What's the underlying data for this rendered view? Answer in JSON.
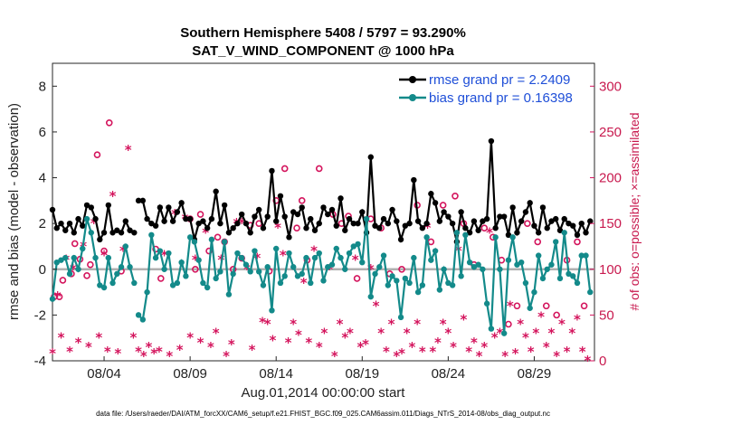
{
  "chart_data": {
    "type": "line",
    "title_line1": "Southern Hemisphere 5408 / 5797 = 93.290%",
    "title_line2": "SAT_V_WIND_COMPONENT @ 1000 hPa",
    "ylabel_left": "rmse and bias (model - observation)",
    "ylabel_right": "# of obs: o=possible; ×=assimilated",
    "xlabel": "Aug.01,2014 00:00:00 start",
    "footer": "data file: /Users/raeder/DAI/ATM_forcXX/CAM6_setup/f.e21.FHIST_BGC.f09_025.CAM6assim.011/Diags_NTrS_2014-08/obs_diag_output.nc",
    "x_range_days": [
      0,
      31.5
    ],
    "ylim_left": [
      -4,
      9
    ],
    "ylim_right": [
      0,
      325
    ],
    "yticks_left": [
      "-4",
      "-2",
      "0",
      "2",
      "4",
      "6",
      "8"
    ],
    "yticks_right": [
      "0",
      "50",
      "100",
      "150",
      "200",
      "250",
      "300"
    ],
    "xtick_labels": [
      "08/04",
      "08/09",
      "08/14",
      "08/19",
      "08/24",
      "08/29"
    ],
    "xtick_days": [
      3,
      8,
      13,
      18,
      23,
      28
    ],
    "zero_line": 0,
    "grid": false,
    "legend_position": "top-right",
    "colors": {
      "rmse": "#000000",
      "bias": "#138a8a",
      "obs": "#d4155d",
      "zero_line": "#b0b0b0",
      "legend_text": "#1f4fd8"
    },
    "series": [
      {
        "name": "rmse grand pr = 2.2409",
        "segments": [
          {
            "x": [
              0.0,
              0.25,
              0.5,
              0.75,
              1.0,
              1.25,
              1.5,
              1.75,
              2.0,
              2.25,
              2.5,
              2.75,
              3.0,
              3.25,
              3.5,
              3.75,
              4.0,
              4.25,
              4.5,
              4.75
            ],
            "y": [
              2.6,
              1.8,
              2.0,
              1.7,
              2.0,
              1.6,
              2.2,
              1.9,
              2.8,
              2.7,
              2.2,
              1.3,
              1.6,
              2.8,
              1.6,
              1.7,
              1.6,
              2.1,
              1.7,
              1.6
            ]
          },
          {
            "x": [
              5.0,
              5.25,
              5.5,
              5.75,
              6.0,
              6.25,
              6.5,
              6.75,
              7.0,
              7.25,
              7.5,
              7.75,
              8.0,
              8.25,
              8.5,
              8.75,
              9.0,
              9.25,
              9.5,
              9.75,
              10.0,
              10.25,
              10.5,
              10.75,
              11.0,
              11.25,
              11.5,
              11.75,
              12.0,
              12.25,
              12.5,
              12.75,
              13.0,
              13.25,
              13.5,
              13.75,
              14.0,
              14.25,
              14.5,
              14.75,
              15.0,
              15.25,
              15.5,
              15.75,
              16.0,
              16.25,
              16.5,
              16.75,
              17.0,
              17.25,
              17.5,
              17.75,
              18.0,
              18.25,
              18.5,
              18.75,
              19.0,
              19.25,
              19.5,
              19.75,
              20.0,
              20.25,
              20.5,
              20.75,
              21.0,
              21.25,
              21.5,
              21.75,
              22.0,
              22.25,
              22.5,
              22.75,
              23.0,
              23.25,
              23.5,
              23.75,
              24.0,
              24.25,
              24.5,
              24.75,
              25.0,
              25.25,
              25.5,
              25.75,
              26.0,
              26.25,
              26.5,
              26.75,
              27.0,
              27.25,
              27.5,
              27.75,
              28.0,
              28.25,
              28.5,
              28.75,
              29.0,
              29.25,
              29.5,
              29.75,
              30.0,
              30.25,
              30.5,
              30.75,
              31.0,
              31.25
            ],
            "y": [
              3.0,
              3.0,
              2.2,
              2.0,
              1.9,
              2.7,
              2.1,
              2.7,
              2.1,
              2.5,
              2.9,
              2.2,
              2.2,
              1.3,
              2.0,
              2.1,
              1.8,
              2.2,
              3.4,
              2.0,
              2.8,
              1.6,
              1.8,
              2.0,
              2.4,
              2.0,
              1.6,
              2.3,
              2.6,
              1.8,
              2.3,
              4.3,
              2.1,
              3.2,
              2.3,
              1.4,
              2.5,
              2.4,
              2.7,
              1.8,
              2.2,
              1.7,
              2.0,
              2.7,
              2.4,
              2.6,
              1.9,
              3.1,
              1.7,
              2.2,
              2.0,
              2.0,
              2.5,
              1.6,
              4.9,
              1.9,
              1.8,
              2.2,
              2.0,
              2.6,
              2.1,
              1.3,
              1.9,
              2.0,
              3.9,
              2.1,
              1.8,
              2.0,
              3.3,
              2.9,
              2.1,
              2.5,
              2.3,
              2.0,
              1.2,
              2.5,
              1.8,
              1.6,
              2.1,
              1.7,
              2.1,
              2.2,
              5.6,
              1.8,
              2.3,
              2.3,
              1.5,
              2.7,
              1.6,
              2.1,
              2.5,
              2.9,
              1.9,
              1.6,
              2.7,
              1.8,
              2.1,
              2.2,
              1.7,
              2.2,
              2.0,
              1.9,
              1.5,
              2.0,
              1.6,
              2.1
            ]
          }
        ]
      },
      {
        "name": "bias grand pr = 0.16398",
        "segments": [
          {
            "x": [
              0.0,
              0.25,
              0.5,
              0.75,
              1.0,
              1.25,
              1.5,
              1.75,
              2.0,
              2.25,
              2.5,
              2.75,
              3.0,
              3.25,
              3.5,
              3.75,
              4.0,
              4.25,
              4.5,
              4.75
            ],
            "y": [
              -1.3,
              0.3,
              0.4,
              0.5,
              -0.2,
              0.5,
              0.0,
              0.9,
              2.2,
              1.6,
              0.5,
              -0.7,
              -0.8,
              0.5,
              -0.6,
              -0.2,
              0.1,
              1.0,
              0.1,
              -0.6
            ]
          },
          {
            "x": [
              5.0,
              5.25,
              5.5,
              5.75,
              6.0,
              6.25,
              6.5,
              6.75,
              7.0,
              7.25,
              7.5,
              7.75,
              8.0,
              8.25,
              8.5,
              8.75,
              9.0,
              9.25,
              9.5,
              9.75,
              10.0,
              10.25,
              10.5,
              10.75,
              11.0,
              11.25,
              11.5,
              11.75,
              12.0,
              12.25,
              12.5,
              12.75,
              13.0,
              13.25,
              13.5,
              13.75,
              14.0,
              14.25,
              14.5,
              14.75,
              15.0,
              15.25,
              15.5,
              15.75,
              16.0,
              16.25,
              16.5,
              16.75,
              17.0,
              17.25,
              17.5,
              17.75,
              18.0,
              18.25,
              18.5,
              18.75,
              19.0,
              19.25,
              19.5,
              19.75,
              20.0,
              20.25,
              20.5,
              20.75,
              21.0,
              21.25,
              21.5,
              21.75,
              22.0,
              22.25,
              22.5,
              22.75,
              23.0,
              23.25,
              23.5,
              23.75,
              24.0,
              24.25,
              24.5,
              24.75,
              25.0,
              25.25,
              25.5,
              25.75,
              26.0,
              26.25,
              26.5,
              26.75,
              27.0,
              27.25,
              27.5,
              27.75,
              28.0,
              28.25,
              28.5,
              28.75,
              29.0,
              29.25,
              29.5,
              29.75,
              30.0,
              30.25,
              30.5,
              30.75,
              31.0,
              31.25
            ],
            "y": [
              -2.0,
              -2.2,
              -1.0,
              1.5,
              0.5,
              0.8,
              0.0,
              0.7,
              -0.7,
              -0.6,
              0.3,
              -0.3,
              1.4,
              1.2,
              0.4,
              -0.6,
              -0.8,
              1.3,
              -0.4,
              -0.1,
              1.2,
              -1.1,
              -0.2,
              0.7,
              0.5,
              0.2,
              -0.1,
              0.8,
              -0.1,
              -0.7,
              0.1,
              -1.8,
              0.9,
              -0.6,
              -0.3,
              0.7,
              0.1,
              -0.3,
              -0.2,
              0.5,
              -0.6,
              0.5,
              0.7,
              -0.5,
              0.1,
              0.2,
              0.9,
              0.5,
              0.0,
              0.7,
              1.0,
              1.1,
              0.3,
              2.2,
              -1.2,
              -0.2,
              0.1,
              0.6,
              -0.7,
              -0.3,
              -0.5,
              -2.1,
              -0.4,
              -0.6,
              0.5,
              -1.0,
              -0.7,
              1.4,
              0.4,
              0.8,
              -0.9,
              0.0,
              -0.6,
              -0.7,
              1.6,
              -0.3,
              1.5,
              0.3,
              0.1,
              0.2,
              0.0,
              -1.5,
              -2.6,
              1.4,
              0.0,
              -2.8,
              0.4,
              1.4,
              0.2,
              0.3,
              -0.6,
              -1.7,
              -1.0,
              0.6,
              -0.4,
              0.0,
              0.2,
              1.2,
              -0.4,
              1.6,
              -0.2,
              -0.3,
              -0.6,
              0.6,
              0.6,
              -1.0
            ]
          }
        ]
      },
      {
        "name": "possible",
        "marker": "o",
        "axis": "right",
        "x": [
          0.1,
          0.4,
          0.6,
          1.1,
          1.3,
          1.6,
          2.0,
          2.2,
          2.6,
          3.0,
          3.3,
          4.0,
          6.0,
          6.3,
          8.0,
          8.3,
          8.6,
          9.1,
          9.6,
          10.0,
          10.5,
          11.0,
          11.5,
          12.0,
          12.6,
          13.0,
          13.5,
          14.2,
          14.5,
          14.8,
          15.5,
          16.3,
          16.8,
          17.2,
          17.7,
          18.5,
          19.1,
          19.6,
          20.3,
          21.2,
          22.0,
          22.7,
          23.4,
          23.9,
          24.5,
          25.1,
          25.6,
          26.1,
          26.5,
          27.0,
          27.6,
          28.2,
          28.7,
          29.3,
          29.9,
          30.5,
          30.9
        ],
        "y": [
          70,
          70,
          88,
          95,
          128,
          111,
          93,
          105,
          225,
          120,
          260,
          98,
          122,
          90,
          155,
          100,
          160,
          120,
          135,
          130,
          100,
          112,
          148,
          150,
          98,
          175,
          210,
          145,
          175,
          110,
          210,
          160,
          150,
          158,
          90,
          155,
          145,
          95,
          100,
          170,
          130,
          170,
          180,
          150,
          105,
          145,
          135,
          110,
          40,
          60,
          150,
          130,
          60,
          50,
          110,
          130,
          60
        ]
      },
      {
        "name": "assimilated",
        "marker": "*",
        "axis": "right",
        "x": [
          0.0,
          0.3,
          0.5,
          0.8,
          1.0,
          1.2,
          1.5,
          1.8,
          2.1,
          2.4,
          2.7,
          3.0,
          3.2,
          3.5,
          3.8,
          4.1,
          4.4,
          4.7,
          5.0,
          5.3,
          5.6,
          5.9,
          6.2,
          6.5,
          6.8,
          7.1,
          7.4,
          7.7,
          8.0,
          8.3,
          8.6,
          8.9,
          9.2,
          9.5,
          9.8,
          10.1,
          10.4,
          10.7,
          11.0,
          11.3,
          11.6,
          11.9,
          12.2,
          12.5,
          12.8,
          13.1,
          13.4,
          13.7,
          14.0,
          14.3,
          14.6,
          14.9,
          15.2,
          15.5,
          15.8,
          16.1,
          16.4,
          16.7,
          17.0,
          17.3,
          17.6,
          17.9,
          18.2,
          18.5,
          18.8,
          19.1,
          19.4,
          19.7,
          20.0,
          20.3,
          20.6,
          20.9,
          21.2,
          21.5,
          21.8,
          22.1,
          22.4,
          22.7,
          23.0,
          23.3,
          23.6,
          23.9,
          24.2,
          24.5,
          24.8,
          25.1,
          25.4,
          25.7,
          26.0,
          26.3,
          26.6,
          26.9,
          27.2,
          27.5,
          27.8,
          28.1,
          28.4,
          28.7,
          29.0,
          29.3,
          29.6,
          29.9,
          30.2,
          30.5,
          30.8,
          31.1
        ],
        "y": [
          8,
          70,
          25,
          110,
          10,
          100,
          20,
          125,
          15,
          150,
          25,
          115,
          10,
          180,
          8,
          120,
          230,
          25,
          10,
          5,
          15,
          8,
          10,
          115,
          5,
          160,
          12,
          155,
          25,
          110,
          20,
          140,
          15,
          30,
          110,
          5,
          18,
          150,
          150,
          100,
          12,
          112,
          42,
          40,
          22,
          145,
          115,
          20,
          40,
          28,
          85,
          20,
          120,
          15,
          30,
          100,
          5,
          40,
          25,
          30,
          110,
          15,
          18,
          100,
          60,
          30,
          10,
          40,
          5,
          8,
          30,
          15,
          40,
          10,
          145,
          10,
          20,
          40,
          30,
          15,
          120,
          45,
          10,
          20,
          5,
          15,
          140,
          25,
          30,
          5,
          60,
          8,
          40,
          25,
          10,
          30,
          48,
          15,
          30,
          5,
          40,
          10,
          30,
          45,
          10,
          0
        ]
      }
    ]
  }
}
